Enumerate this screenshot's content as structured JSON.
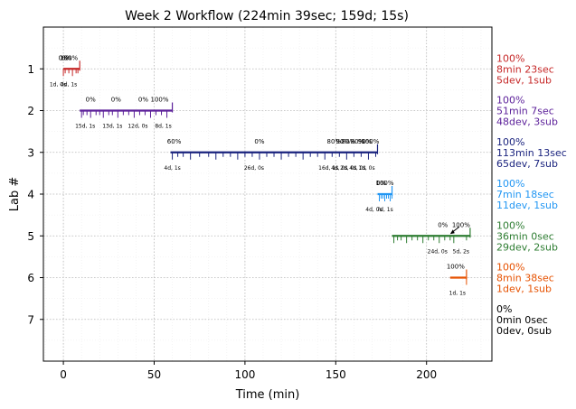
{
  "chart_data": {
    "type": "timeline",
    "title": "Week 2 Workflow (224min 39sec; 159d; 15s)",
    "xlabel": "Time (min)",
    "ylabel": "Lab #",
    "xlim": [
      -11,
      236
    ],
    "ylim": [
      8,
      0
    ],
    "xticks": [
      0,
      50,
      100,
      150,
      200
    ],
    "yticks": [
      1,
      2,
      3,
      4,
      5,
      6,
      7
    ],
    "grid": true,
    "labs": [
      {
        "lab": 1,
        "color": "#c62828",
        "start": 0,
        "end": 9,
        "summary": [
          "100%",
          "8min 23sec",
          "5dev, 1sub"
        ],
        "ticks": [
          0,
          1,
          3,
          5,
          7,
          8
        ],
        "top_labels": [
          {
            "x": 0,
            "text": "0%"
          },
          {
            "x": 2,
            "text": "0%"
          },
          {
            "x": 3,
            "text": "100%"
          }
        ],
        "bottom_labels": [
          {
            "x": -3,
            "text": "1d, 0s"
          },
          {
            "x": 3,
            "text": "4d, 1s"
          }
        ]
      },
      {
        "lab": 2,
        "color": "#5b1f99",
        "start": 9,
        "end": 60,
        "summary": [
          "100%",
          "51min 7sec",
          "48dev, 3sub"
        ],
        "ticks": [
          10,
          11,
          13,
          15,
          18,
          20,
          22,
          25,
          27,
          30,
          33,
          36,
          39,
          42,
          45,
          48,
          51,
          54,
          57
        ],
        "top_labels": [
          {
            "x": 15,
            "text": "0%"
          },
          {
            "x": 29,
            "text": "0%"
          },
          {
            "x": 44,
            "text": "0%"
          },
          {
            "x": 53,
            "text": "100%"
          }
        ],
        "bottom_labels": [
          {
            "x": 12,
            "text": "15d, 1s"
          },
          {
            "x": 27,
            "text": "13d, 1s"
          },
          {
            "x": 41,
            "text": "12d, 0s"
          },
          {
            "x": 55,
            "text": "8d, 1s"
          }
        ]
      },
      {
        "lab": 3,
        "color": "#1a237e",
        "start": 59,
        "end": 173,
        "summary": [
          "100%",
          "113min 13sec",
          "65dev, 7sub"
        ],
        "ticks": [
          60,
          63,
          66,
          70,
          75,
          80,
          84,
          88,
          92,
          96,
          100,
          104,
          108,
          112,
          116,
          120,
          124,
          128,
          132,
          136,
          140,
          144,
          148,
          152,
          156,
          160,
          164,
          168,
          172
        ],
        "top_labels": [
          {
            "x": 61,
            "text": "60%"
          },
          {
            "x": 108,
            "text": "0%"
          },
          {
            "x": 149,
            "text": "80%"
          },
          {
            "x": 154,
            "text": "90%"
          },
          {
            "x": 157,
            "text": "80%"
          },
          {
            "x": 162,
            "text": "80%"
          },
          {
            "x": 166,
            "text": "90%"
          },
          {
            "x": 169,
            "text": "100%"
          }
        ],
        "bottom_labels": [
          {
            "x": 60,
            "text": "4d, 1s"
          },
          {
            "x": 105,
            "text": "26d, 0s"
          },
          {
            "x": 146,
            "text": "16d, 1s"
          },
          {
            "x": 152,
            "text": "4d, 0s"
          },
          {
            "x": 157,
            "text": "2d, 0s"
          },
          {
            "x": 162,
            "text": "4d, 0s"
          },
          {
            "x": 167,
            "text": "1d, 0s"
          }
        ]
      },
      {
        "lab": 4,
        "color": "#2196f3",
        "start": 173,
        "end": 181,
        "summary": [
          "100%",
          "7min 18sec",
          "11dev, 1sub"
        ],
        "ticks": [
          174,
          175,
          176,
          177,
          178,
          179,
          180,
          181
        ],
        "top_labels": [
          {
            "x": 175,
            "text": "0%"
          },
          {
            "x": 177,
            "text": "100%"
          }
        ],
        "bottom_labels": [
          {
            "x": 171,
            "text": "4d, 0s"
          },
          {
            "x": 177,
            "text": "7d, 1s"
          }
        ]
      },
      {
        "lab": 5,
        "color": "#2e7d32",
        "start": 181,
        "end": 224,
        "summary": [
          "100%",
          "36min 0sec",
          "29dev, 2sub"
        ],
        "ticks": [
          182,
          184,
          186,
          189,
          192,
          195,
          198,
          201,
          204,
          207,
          210,
          213,
          215,
          222
        ],
        "top_labels": [
          {
            "x": 209,
            "text": "0%"
          },
          {
            "x": 219,
            "text": "100%"
          }
        ],
        "bottom_labels": [
          {
            "x": 206,
            "text": "24d, 0s"
          },
          {
            "x": 219,
            "text": "5d, 2s"
          }
        ]
      },
      {
        "lab": 6,
        "color": "#e65100",
        "start": 213,
        "end": 222,
        "summary": [
          "100%",
          "8min 38sec",
          "1dev, 1sub"
        ],
        "ticks": [
          222
        ],
        "top_labels": [
          {
            "x": 216,
            "text": "100%"
          }
        ],
        "bottom_labels": [
          {
            "x": 217,
            "text": "1d, 1s"
          }
        ]
      },
      {
        "lab": 7,
        "color": "#000000",
        "start": null,
        "end": null,
        "summary": [
          "0%",
          "0min 0sec",
          "0dev, 0sub"
        ],
        "ticks": [],
        "top_labels": [],
        "bottom_labels": []
      }
    ]
  }
}
